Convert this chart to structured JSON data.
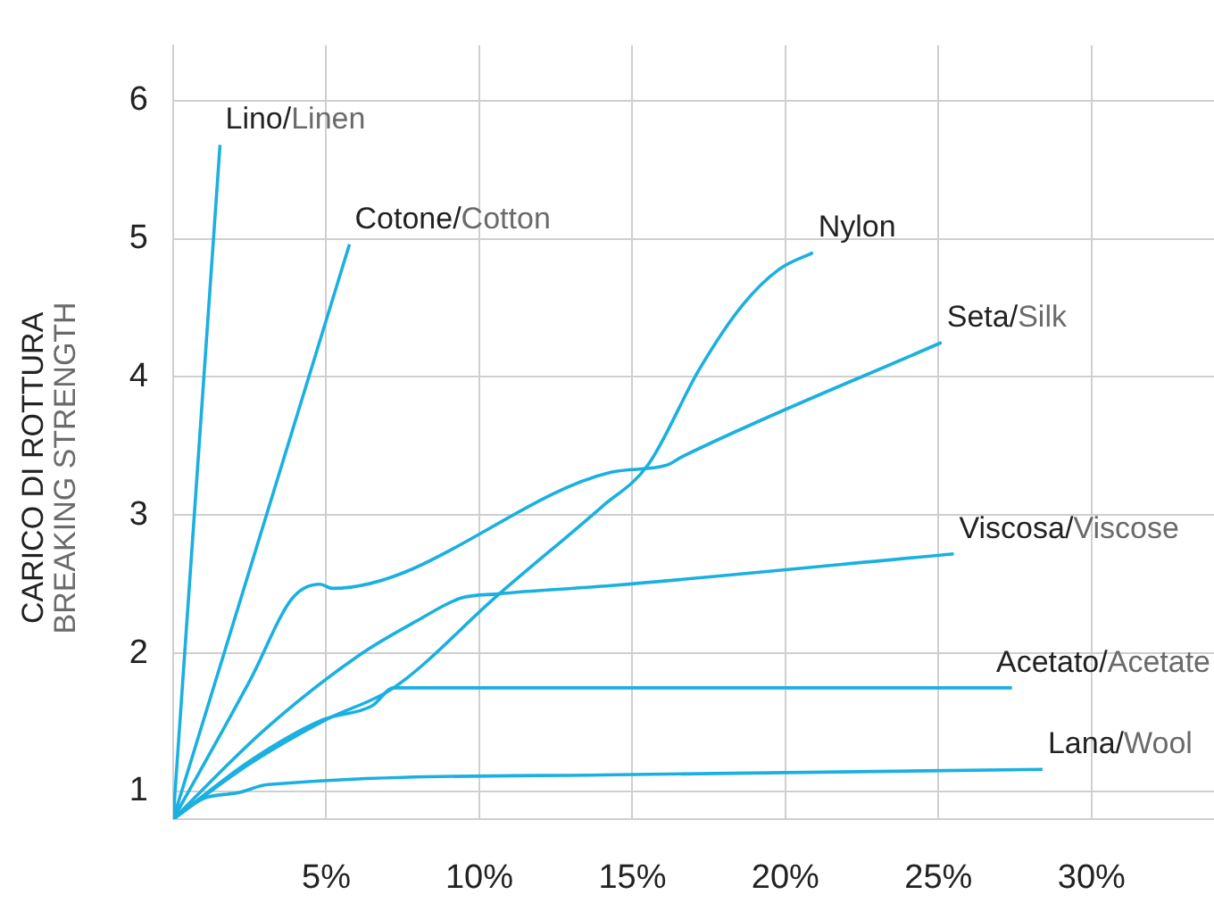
{
  "chart_data": {
    "type": "line",
    "ylabel": "CARICO DI ROTTURA\nBREAKING STRENGTH",
    "xlim": [
      0,
      34
    ],
    "ylim": [
      0.8,
      6.4
    ],
    "xticks": [
      {
        "value": 5,
        "label": "5%"
      },
      {
        "value": 10,
        "label": "10%"
      },
      {
        "value": 15,
        "label": "15%"
      },
      {
        "value": 20,
        "label": "20%"
      },
      {
        "value": 25,
        "label": "25%"
      },
      {
        "value": 30,
        "label": "30%"
      }
    ],
    "yticks": [
      1,
      2,
      3,
      4,
      5,
      6
    ],
    "grid": true,
    "legend": false,
    "marker": "none",
    "line_style": "solid",
    "series": [
      {
        "name": "Lino/Linen",
        "color": "#1ab0e0",
        "x": [
          0,
          1.53
        ],
        "values": [
          0.8,
          5.68
        ]
      },
      {
        "name": "Cotone/Cotton",
        "color": "#1ab0e0",
        "x": [
          0,
          5.76
        ],
        "values": [
          0.8,
          4.96
        ]
      },
      {
        "name": "Nylon",
        "color": "#1ab0e0",
        "x": [
          0,
          2.5,
          5,
          7.2,
          10.6,
          14,
          15.5,
          17.2,
          18.6,
          19.8,
          20.9
        ],
        "values": [
          0.8,
          1.2,
          1.52,
          1.75,
          2.42,
          3.06,
          3.36,
          4.06,
          4.52,
          4.78,
          4.9
        ]
      },
      {
        "name": "Seta/Silk",
        "color": "#1ab0e0",
        "x": [
          0,
          2.5,
          3.9,
          4.8,
          5.2,
          14.3,
          16.1,
          16.6,
          25.1
        ],
        "values": [
          0.8,
          1.8,
          2.4,
          2.5,
          2.47,
          3.31,
          3.36,
          3.42,
          4.25
        ]
      },
      {
        "name": "Viscosa/Viscose",
        "color": "#1ab0e0",
        "x": [
          0,
          3,
          6.1,
          8,
          9.4,
          10.6,
          14.3,
          25.5
        ],
        "values": [
          0.8,
          1.45,
          1.99,
          2.24,
          2.4,
          2.43,
          2.49,
          2.72
        ]
      },
      {
        "name": "Acetato/Acetate",
        "color": "#1ab0e0",
        "x": [
          0,
          2.5,
          4.9,
          6.5,
          7.2,
          27.4
        ],
        "values": [
          0.8,
          1.22,
          1.52,
          1.62,
          1.75,
          1.75
        ]
      },
      {
        "name": "Lana/Wool",
        "color": "#1ab0e0",
        "x": [
          0,
          1,
          2.1,
          3.1,
          14,
          28.4
        ],
        "values": [
          0.8,
          0.95,
          0.99,
          1.05,
          1.12,
          1.16
        ]
      }
    ]
  }
}
